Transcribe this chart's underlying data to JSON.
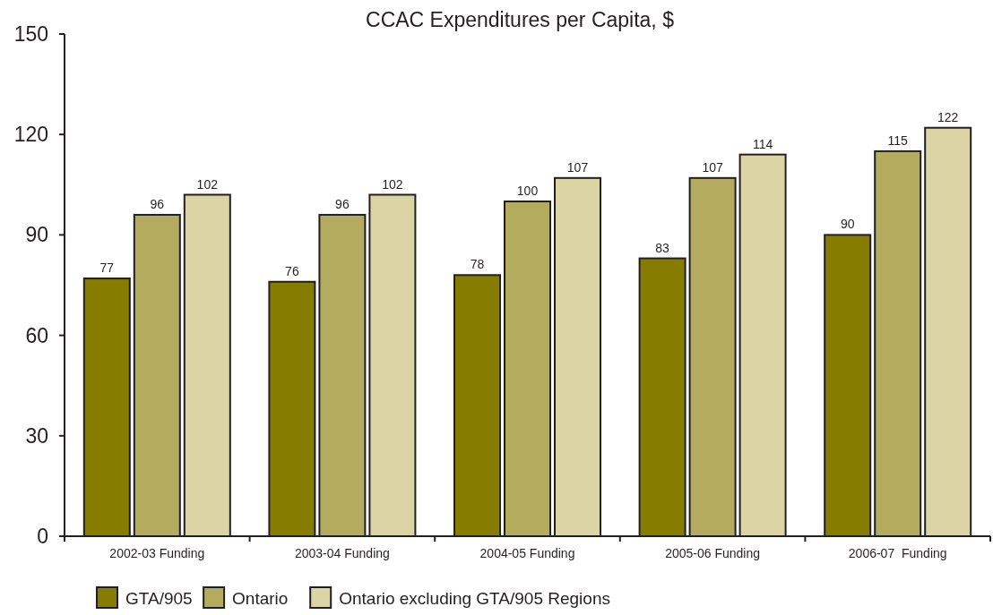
{
  "chart_data": {
    "type": "bar",
    "title": "CCAC Expenditures per Capita, $",
    "categories": [
      "2002-03 Funding",
      "2003-04 Funding",
      "2004-05 Funding",
      "2005-06 Funding",
      "2006-07  Funding"
    ],
    "series": [
      {
        "name": "GTA/905",
        "color": "#857c00",
        "values": [
          77,
          76,
          78,
          83,
          90
        ]
      },
      {
        "name": "Ontario",
        "color": "#b3ab5e",
        "values": [
          96,
          96,
          100,
          107,
          115
        ]
      },
      {
        "name": "Ontario excluding GTA/905 Regions",
        "color": "#dbd5a5",
        "values": [
          102,
          102,
          107,
          114,
          122
        ]
      }
    ],
    "ylim": [
      0,
      150
    ],
    "yticks": [
      0,
      30,
      60,
      90,
      120,
      150
    ],
    "grid": false,
    "legend": "bottom",
    "data_labels": true
  }
}
